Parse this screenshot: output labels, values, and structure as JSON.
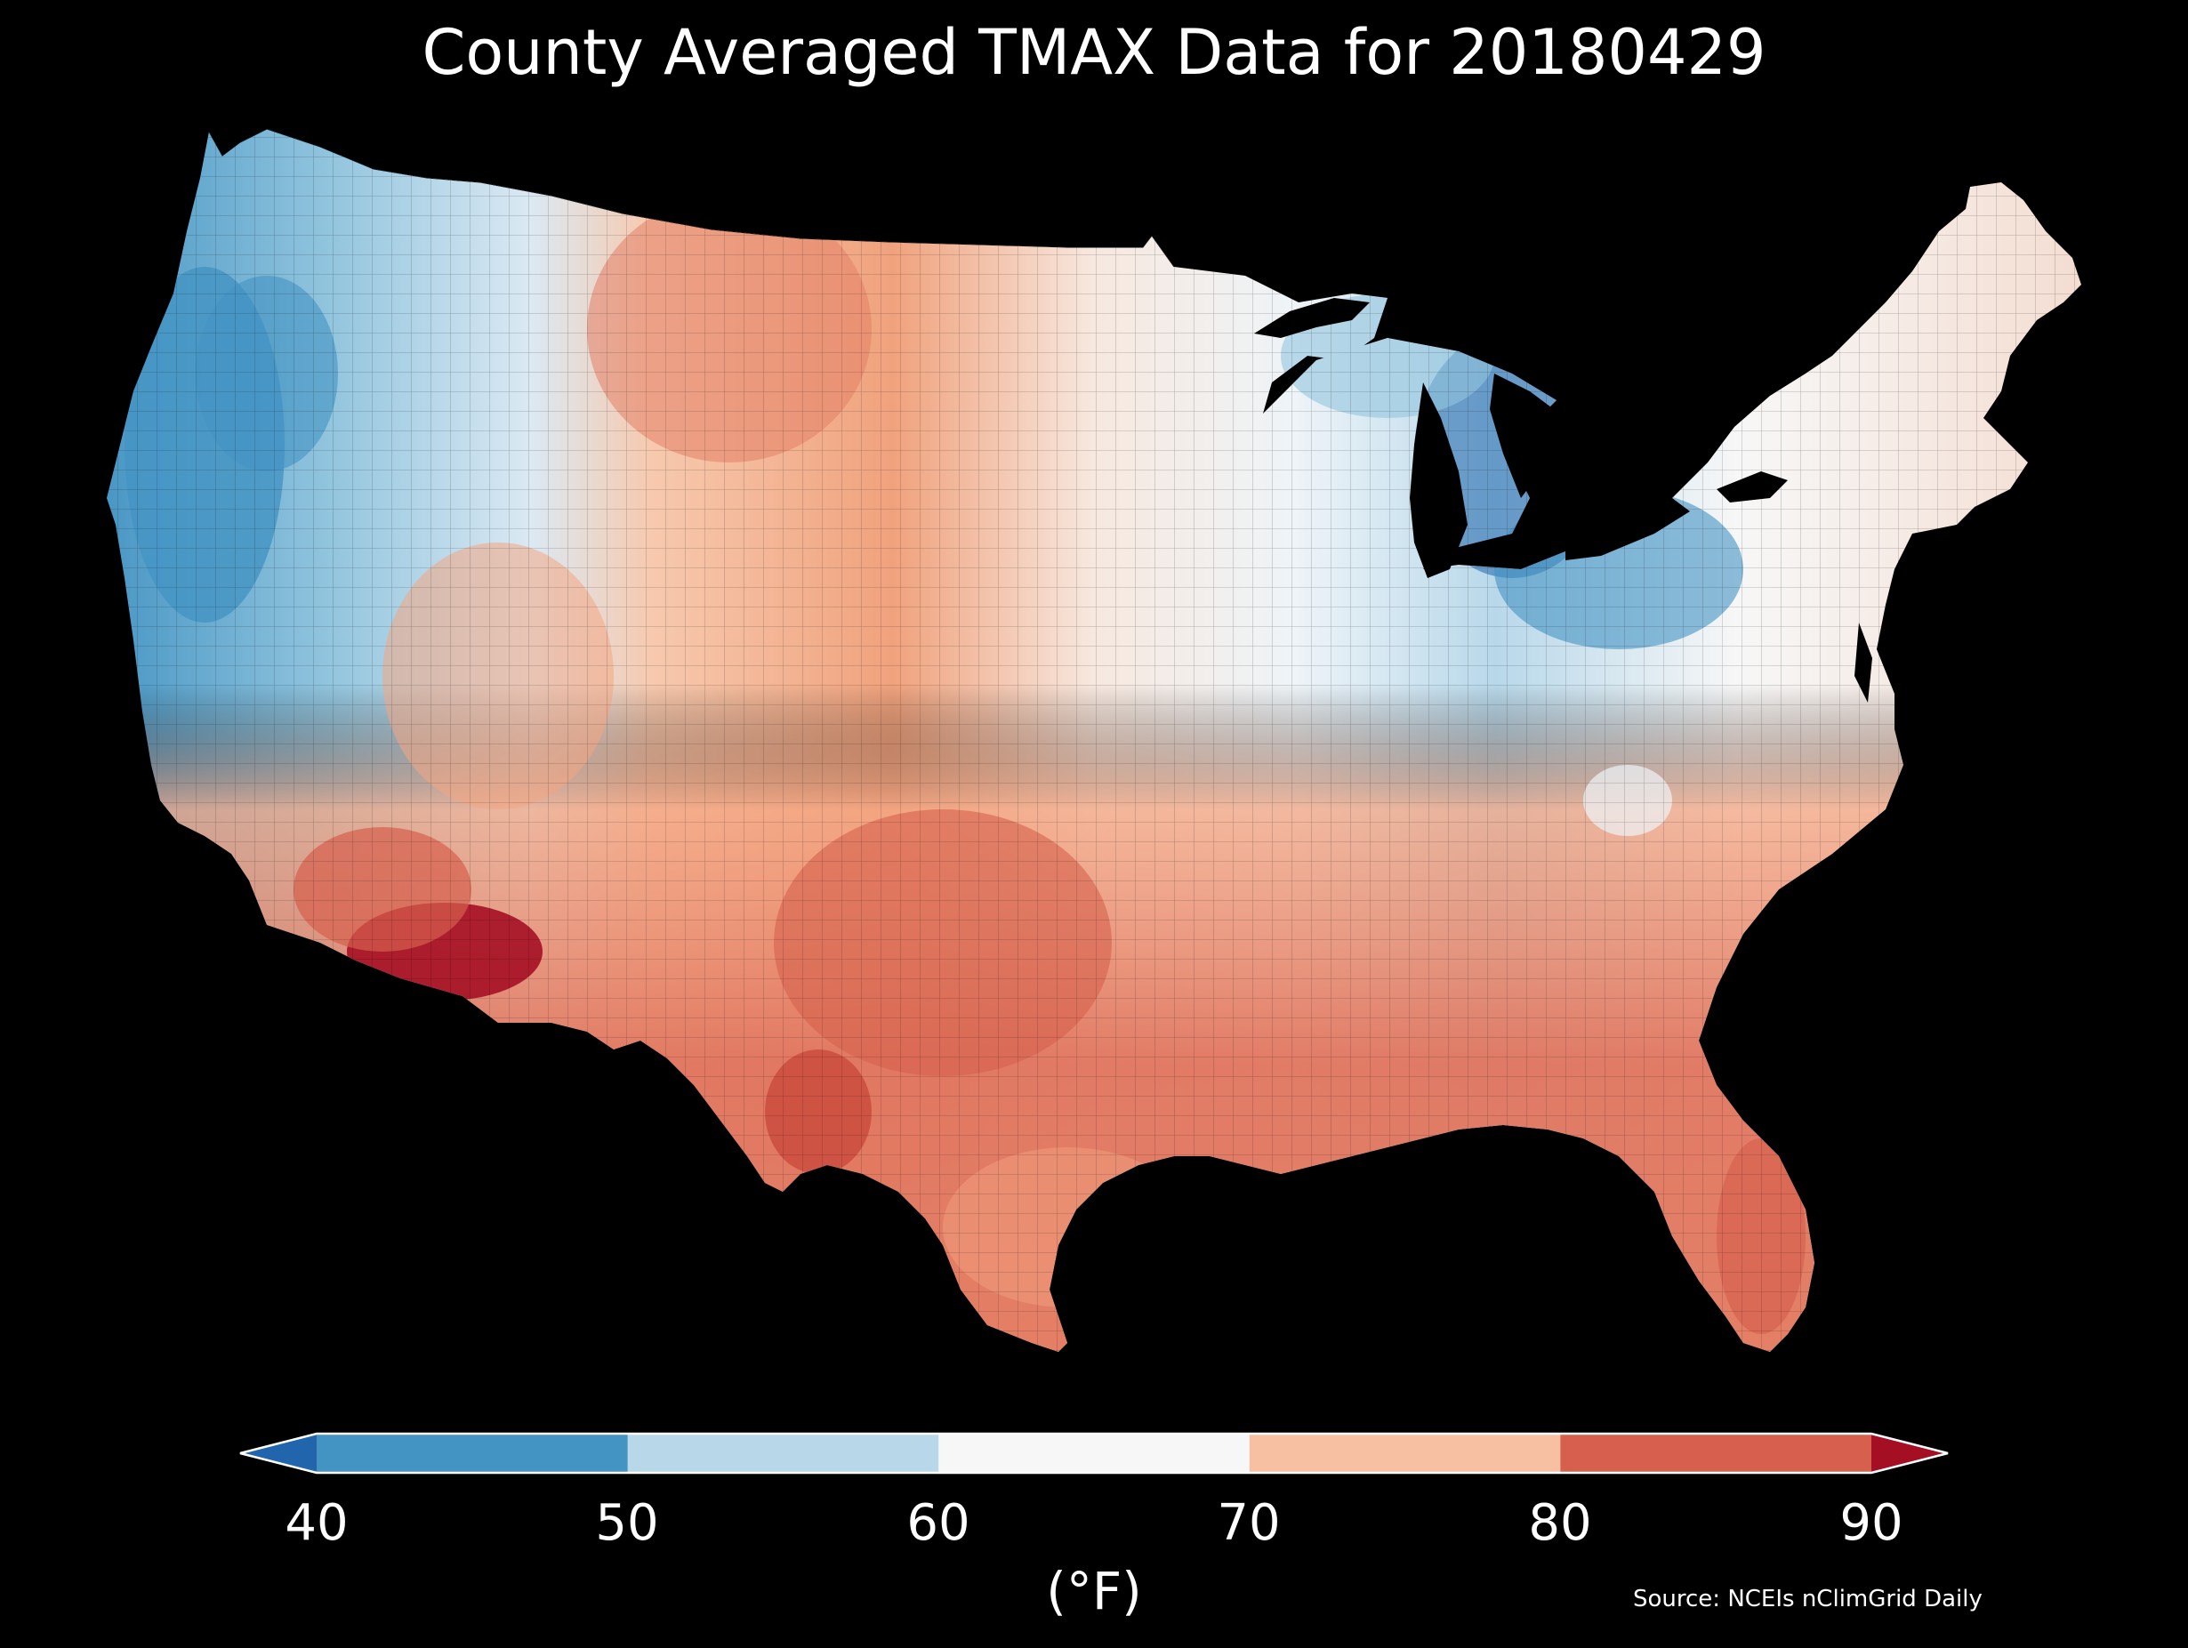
{
  "title": "County Averaged TMAX Data for 20180429",
  "colorbar": {
    "unit_label": "(°F)",
    "ticks": [
      "40",
      "50",
      "60",
      "70",
      "80",
      "90"
    ],
    "extend": "both",
    "bins": [
      {
        "range": "<40",
        "color": "#2166ac"
      },
      {
        "range": "40-50",
        "color": "#4393c3"
      },
      {
        "range": "50-60",
        "color": "#b8d8ea"
      },
      {
        "range": "60-70",
        "color": "#f7f7f7"
      },
      {
        "range": "70-80",
        "color": "#f8c0a2"
      },
      {
        "range": "80-90",
        "color": "#d6604d"
      },
      {
        "range": ">90",
        "color": "#a50f24"
      }
    ]
  },
  "source": "Source: NCEIs nClimGrid Daily",
  "map": {
    "region": "Contiguous United States",
    "background": "#000000",
    "county_border_color": "#000000"
  }
}
